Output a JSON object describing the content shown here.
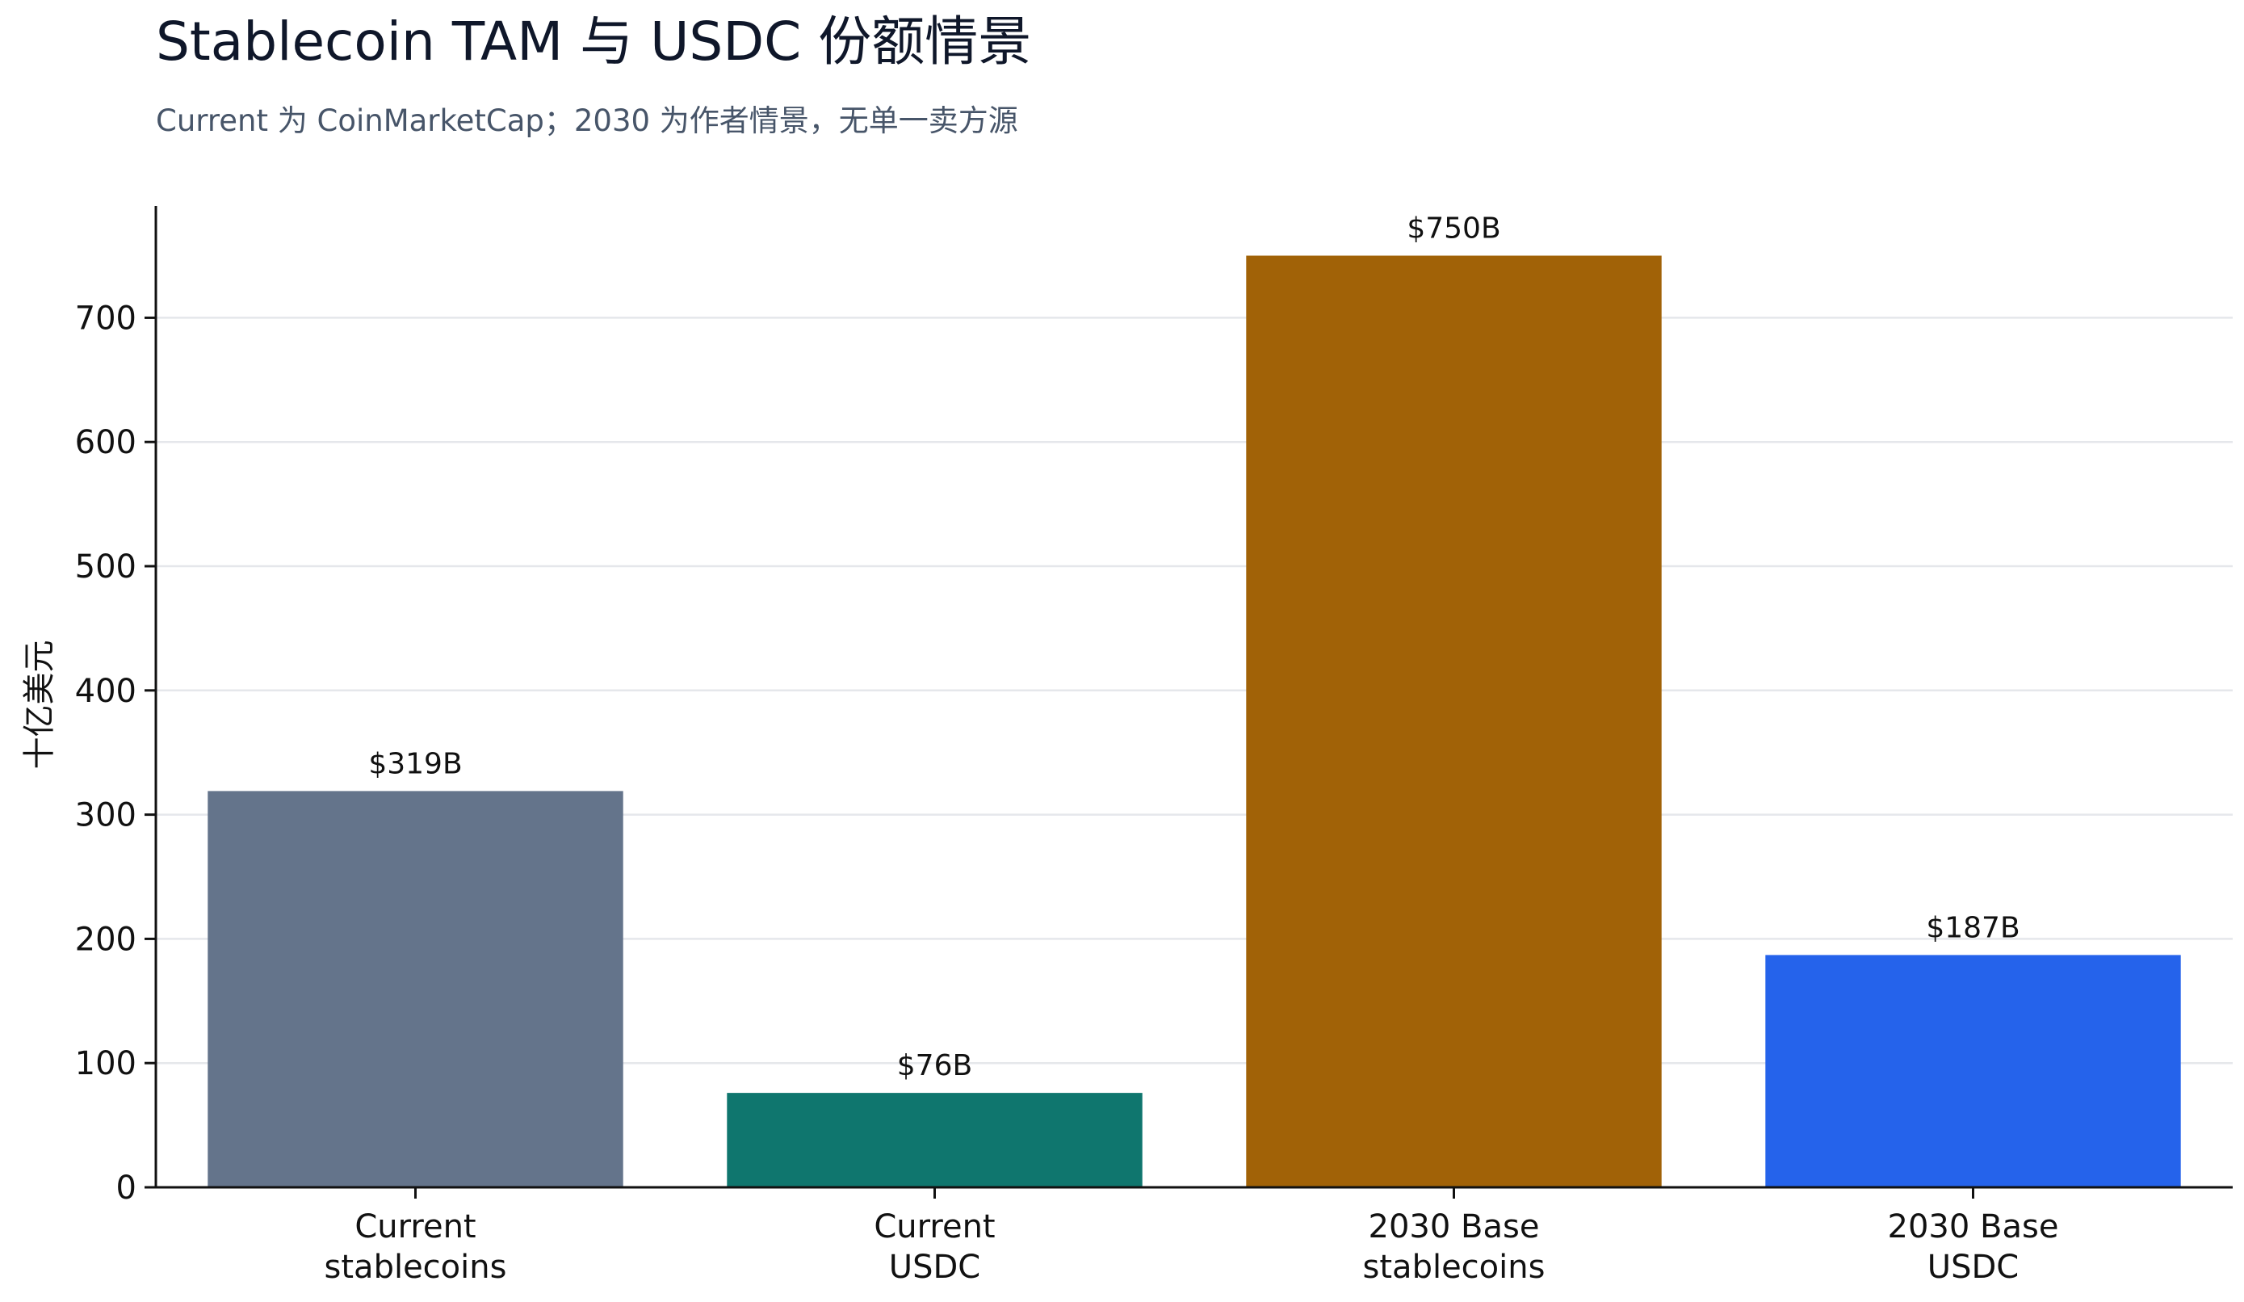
{
  "title": "Stablecoin TAM 与 USDC 份额情景",
  "subtitle": "Current 为 CoinMarketCap；2030 为作者情景，无单一卖方源",
  "chart_data": {
    "type": "bar",
    "categories": [
      [
        "Current",
        "stablecoins"
      ],
      [
        "Current",
        "USDC"
      ],
      [
        "2030 Base",
        "stablecoins"
      ],
      [
        "2030 Base",
        "USDC"
      ]
    ],
    "values": [
      319,
      76,
      750,
      187
    ],
    "data_labels": [
      "$319B",
      "$76B",
      "$750B",
      "$187B"
    ],
    "colors": [
      "#64748b",
      "#0f766e",
      "#a16207",
      "#2563eb"
    ],
    "ylabel": "十亿美元",
    "xlabel": "",
    "ylim": [
      0,
      790
    ],
    "yticks": [
      0,
      100,
      200,
      300,
      400,
      500,
      600,
      700
    ],
    "grid": "horizontal"
  }
}
